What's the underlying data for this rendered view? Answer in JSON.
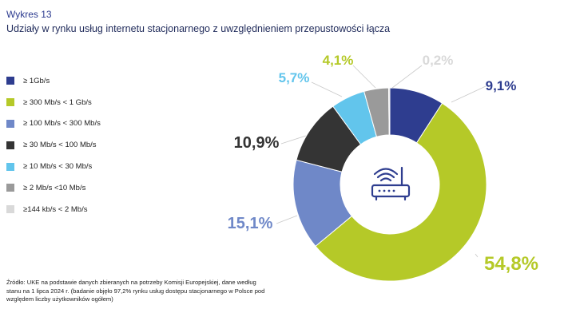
{
  "figure_number": "Wykres 13",
  "title": "Udziały w rynku usług internetu stacjonarnego z uwzględnieniem przepustowości łącza",
  "source_note": "Źródło: UKE na podstawie danych zbieranych na potrzeby Komisji Europejskiej, dane według stanu na 1 lipca 2024 r. (badanie objęło 97,2% rynku usług dostępu stacjonarnego w Polsce pod względem liczby użytkowników ogółem)",
  "center_icon": "router-icon",
  "chart_data": {
    "type": "pie",
    "style": "donut",
    "start": "12 o'clock, clockwise",
    "legend_position": "left",
    "slices": [
      {
        "label": "≥ 1Gb/s",
        "value": 9.1,
        "display": "9,1%",
        "color": "#2e3d8f"
      },
      {
        "label": "≥ 300 Mb/s < 1 Gb/s",
        "value": 54.8,
        "display": "54,8%",
        "color": "#b5c928"
      },
      {
        "label": "≥ 100 Mb/s < 300 Mb/s",
        "value": 15.1,
        "display": "15,1%",
        "color": "#6f88c8"
      },
      {
        "label": "≥ 30 Mb/s < 100 Mb/s",
        "value": 10.9,
        "display": "10,9%",
        "color": "#343434"
      },
      {
        "label": "≥ 10 Mb/s < 30 Mb/s",
        "value": 5.7,
        "display": "5,7%",
        "color": "#62c5ec"
      },
      {
        "label": "≥ 2 Mb/s <10 Mb/s",
        "value": 4.1,
        "display": "4,1%",
        "color": "#9a9a9a"
      },
      {
        "label": "≥144 kb/s < 2 Mb/s",
        "value": 0.2,
        "display": "0,2%",
        "color": "#d9d9d9"
      }
    ]
  }
}
